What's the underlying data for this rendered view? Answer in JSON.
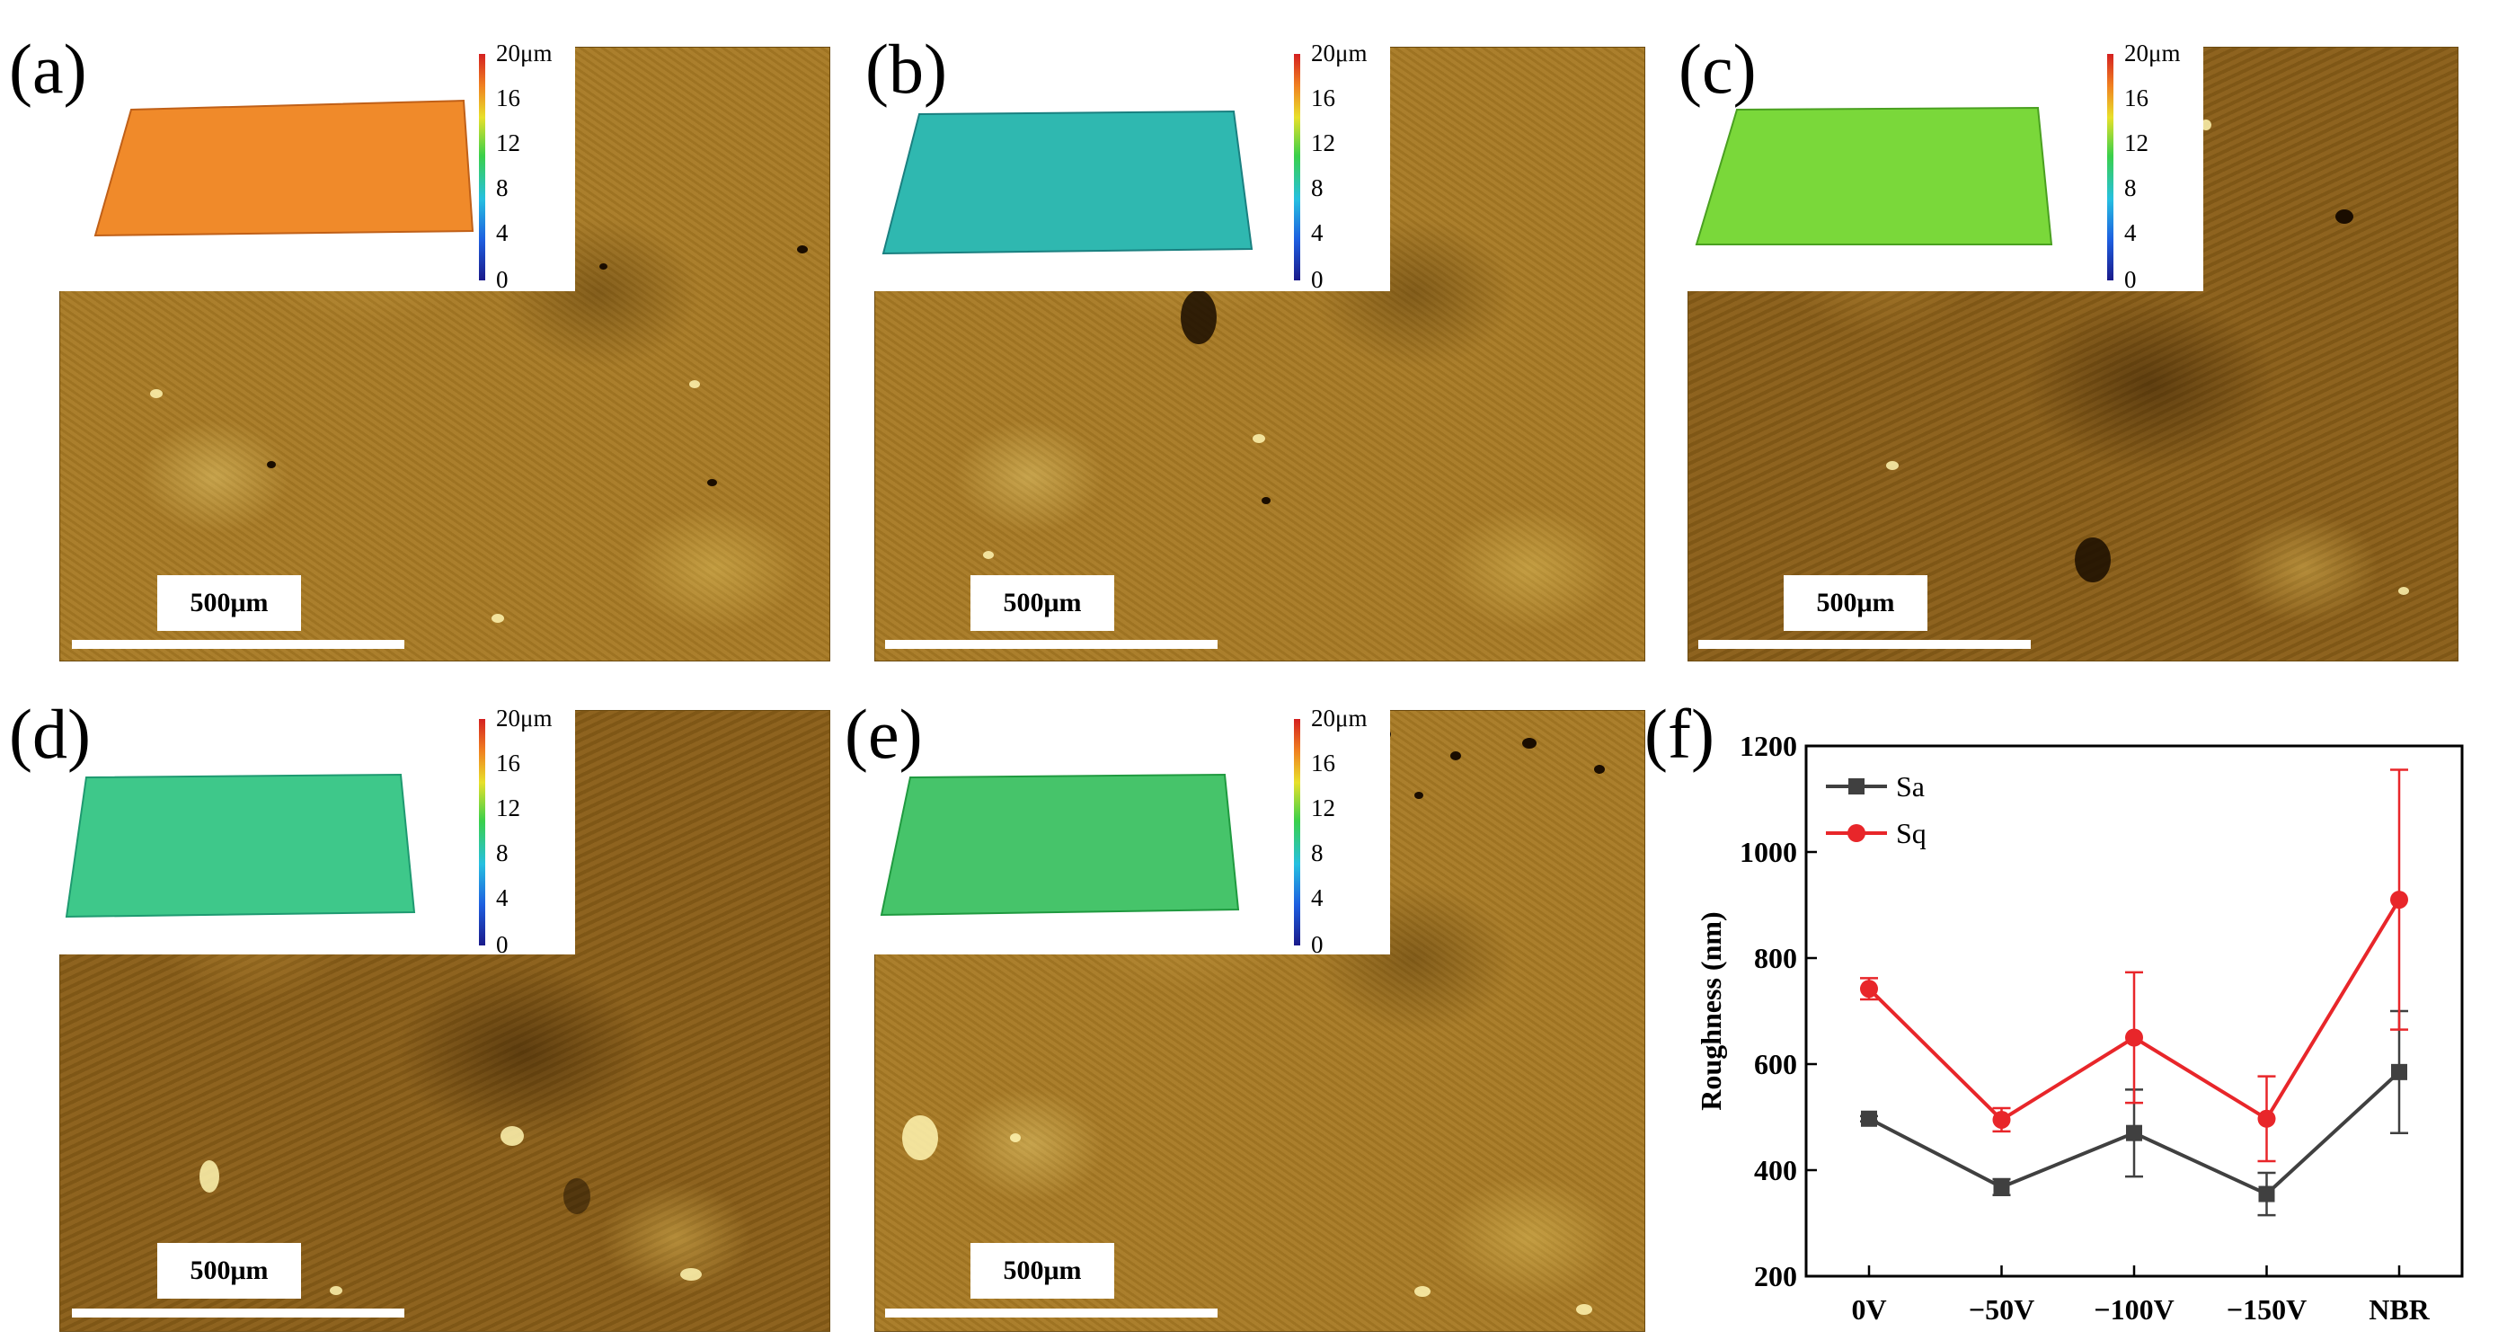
{
  "panels": [
    {
      "label": "(a)",
      "scale": "500μm",
      "surface_color": "#f08a2a",
      "dark": false
    },
    {
      "label": "(b)",
      "scale": "500μm",
      "surface_color": "#2fb8b0",
      "dark": false
    },
    {
      "label": "(c)",
      "scale": "500μm",
      "surface_color": "#7ad83a",
      "dark": true
    },
    {
      "label": "(d)",
      "scale": "500μm",
      "surface_color": "#3ec88a",
      "dark": true
    },
    {
      "label": "(e)",
      "scale": "500μm",
      "surface_color": "#46c46a",
      "dark": false
    }
  ],
  "colorbar": {
    "ticks": [
      "20μm",
      "16",
      "12",
      "8",
      "4",
      "0"
    ]
  },
  "chart_label": "(f)",
  "chart_data": {
    "type": "line",
    "categories": [
      "0V",
      "−50V",
      "−100V",
      "−150V",
      "NBR"
    ],
    "ylabel": "Roughness (nm)",
    "xlabel": "",
    "ylim": [
      200,
      1200
    ],
    "yticks": [
      200,
      400,
      600,
      800,
      1000,
      1200
    ],
    "legend_position": "top-left",
    "series": [
      {
        "name": "Sa",
        "color": "#404040",
        "marker": "square",
        "values": [
          497,
          368,
          470,
          355,
          585
        ],
        "errors": [
          5,
          15,
          82,
          40,
          115
        ]
      },
      {
        "name": "Sq",
        "color": "#e8262a",
        "marker": "circle",
        "values": [
          742,
          495,
          650,
          497,
          910
        ],
        "errors": [
          20,
          22,
          123,
          80,
          245
        ]
      }
    ]
  }
}
